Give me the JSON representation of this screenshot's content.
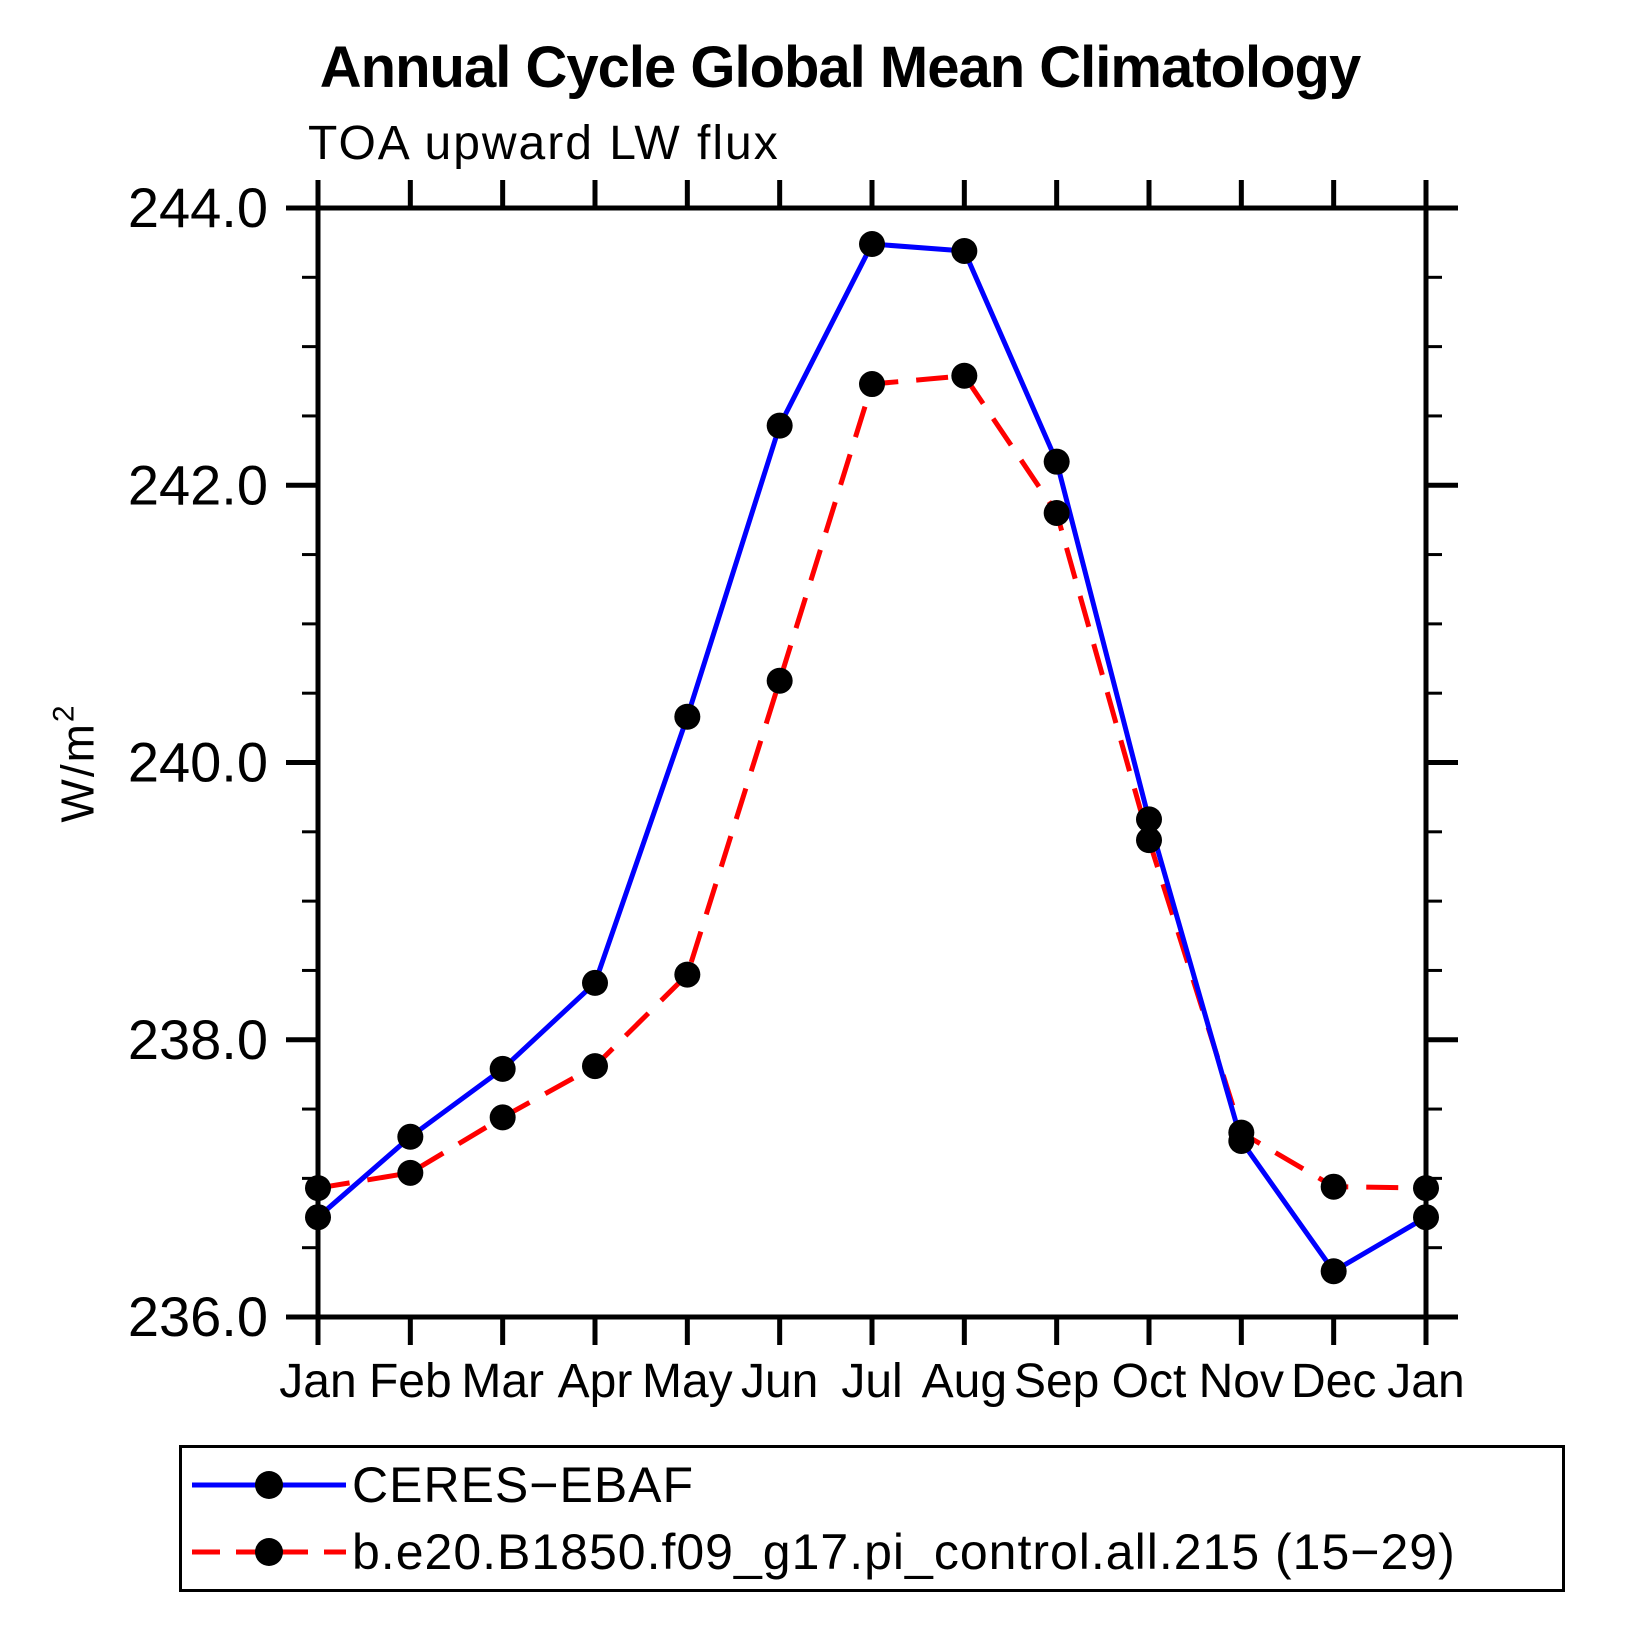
{
  "header": {
    "title": "Annual Cycle Global Mean Climatology",
    "subtitle": "TOA upward LW flux"
  },
  "y_axis": {
    "label": "W/m²",
    "label_base": "W/m",
    "label_sup": "2",
    "tick_labels": [
      "236.0",
      "238.0",
      "240.0",
      "242.0",
      "244.0"
    ]
  },
  "x_axis": {
    "tick_labels": [
      "Jan",
      "Feb",
      "Mar",
      "Apr",
      "May",
      "Jun",
      "Jul",
      "Aug",
      "Sep",
      "Oct",
      "Nov",
      "Dec",
      "Jan"
    ]
  },
  "legend": {
    "items": [
      {
        "label": "CERES−EBAF",
        "color": "#0000ff",
        "line_style": "solid",
        "marker": "filled-black-circle"
      },
      {
        "label": "b.e20.B1850.f09_g17.pi_control.all.215 (15−29)",
        "color": "#ff0000",
        "line_style": "dashed",
        "marker": "filled-black-circle"
      }
    ]
  },
  "chart_data": {
    "type": "line",
    "title": "Annual Cycle Global Mean Climatology",
    "subtitle": "TOA upward LW flux",
    "xlabel": "",
    "ylabel": "W/m²",
    "categories": [
      "Jan",
      "Feb",
      "Mar",
      "Apr",
      "May",
      "Jun",
      "Jul",
      "Aug",
      "Sep",
      "Oct",
      "Nov",
      "Dec",
      "Jan"
    ],
    "series": [
      {
        "name": "CERES−EBAF",
        "color": "#0000ff",
        "style": "solid",
        "marker_color": "#000000",
        "values": [
          236.72,
          237.3,
          237.79,
          238.41,
          240.33,
          242.43,
          243.74,
          243.69,
          242.17,
          239.59,
          237.27,
          236.33,
          236.72
        ]
      },
      {
        "name": "b.e20.B1850.f09_g17.pi_control.all.215 (15−29)",
        "color": "#ff0000",
        "style": "dashed",
        "marker_color": "#000000",
        "values": [
          236.93,
          237.04,
          237.44,
          237.81,
          238.47,
          240.59,
          242.73,
          242.79,
          241.8,
          239.44,
          237.33,
          236.94,
          236.93
        ]
      }
    ],
    "ylim": [
      236.0,
      244.0
    ],
    "ytick_major": [
      236.0,
      238.0,
      240.0,
      242.0,
      244.0
    ],
    "ytick_minor_step": 0.5,
    "grid": false,
    "legend_position": "bottom-left"
  }
}
